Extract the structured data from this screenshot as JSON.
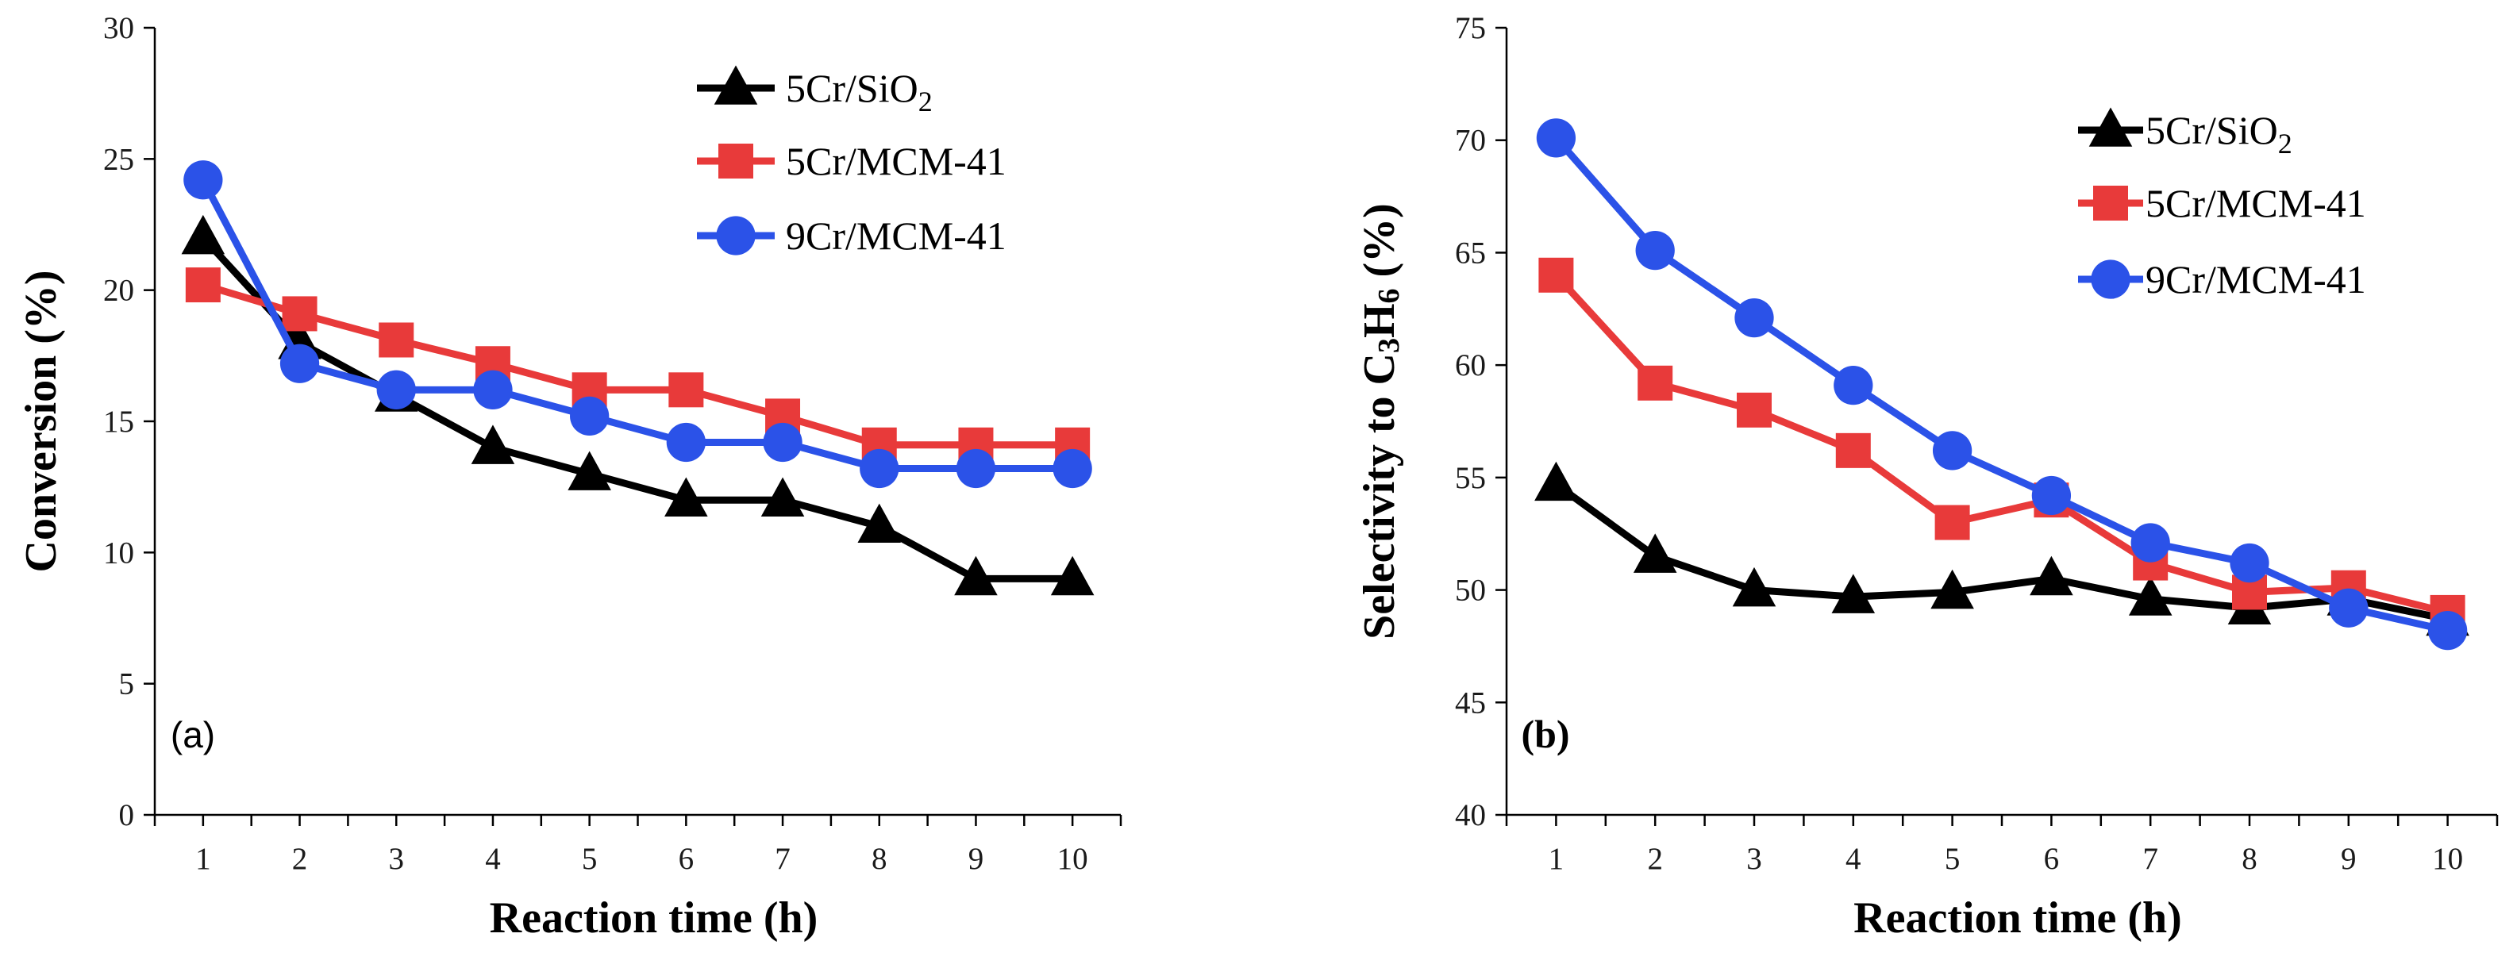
{
  "colors": {
    "5Cr/SiO2": "#000000",
    "5Cr/MCM-41": "#e83a3a",
    "9Cr/MCM-41": "#2b52e8"
  },
  "chart_data": [
    {
      "type": "line",
      "panel_label": "(a)",
      "xlabel": "Reaction time (h)",
      "ylabel": "Conversion (%)",
      "x": [
        1,
        2,
        3,
        4,
        5,
        6,
        7,
        8,
        9,
        10
      ],
      "ylim": [
        0,
        30
      ],
      "yticks": [
        "0",
        "5",
        "10",
        "15",
        "20",
        "25",
        "30"
      ],
      "legend": [
        {
          "base": "5Cr/SiO",
          "sub": "2",
          "marker": "triangle",
          "series": "5Cr/SiO2"
        },
        {
          "base": "5Cr/MCM-41",
          "sub": "",
          "marker": "square",
          "series": "5Cr/MCM-41"
        },
        {
          "base": "9Cr/MCM-41",
          "sub": "",
          "marker": "circle",
          "series": "9Cr/MCM-41"
        }
      ],
      "series": [
        {
          "name": "5Cr/SiO2",
          "marker": "triangle",
          "values": [
            22,
            18,
            16,
            14,
            13,
            12,
            12,
            11,
            9,
            9
          ]
        },
        {
          "name": "5Cr/MCM-41",
          "marker": "square",
          "values": [
            20.2,
            19.1,
            18.1,
            17.2,
            16.2,
            16.2,
            15.2,
            14.1,
            14.1,
            14.1
          ]
        },
        {
          "name": "9Cr/MCM-41",
          "marker": "circle",
          "values": [
            24.2,
            17.2,
            16.2,
            16.2,
            15.2,
            14.2,
            14.2,
            13.2,
            13.2,
            13.2
          ]
        }
      ]
    },
    {
      "type": "line",
      "panel_label": "(b)",
      "xlabel": "Reaction time (h)",
      "ylabel": "Selectivity to C3H6 (%)",
      "ylabel_parts": {
        "pre": "Selectivity to C",
        "sub1": "3",
        "mid": "H",
        "sub2": "6",
        "post": " (%)"
      },
      "x": [
        1,
        2,
        3,
        4,
        5,
        6,
        7,
        8,
        9,
        10
      ],
      "ylim": [
        40,
        75
      ],
      "yticks": [
        "40",
        "45",
        "50",
        "55",
        "60",
        "65",
        "70",
        "75"
      ],
      "legend": [
        {
          "base": "5Cr/SiO",
          "sub": "2",
          "marker": "triangle",
          "series": "5Cr/SiO2"
        },
        {
          "base": "5Cr/MCM-41",
          "sub": "",
          "marker": "square",
          "series": "5Cr/MCM-41"
        },
        {
          "base": "9Cr/MCM-41",
          "sub": "",
          "marker": "circle",
          "series": "9Cr/MCM-41"
        }
      ],
      "series": [
        {
          "name": "5Cr/SiO2",
          "marker": "triangle",
          "values": [
            54.7,
            51.5,
            50,
            49.7,
            49.9,
            50.5,
            49.6,
            49.2,
            49.6,
            48.7
          ]
        },
        {
          "name": "5Cr/MCM-41",
          "marker": "square",
          "values": [
            64,
            59.2,
            58,
            56.2,
            53,
            54,
            51.2,
            49.9,
            50.1,
            49
          ]
        },
        {
          "name": "9Cr/MCM-41",
          "marker": "circle",
          "values": [
            70.1,
            65.1,
            62.1,
            59.1,
            56.2,
            54.2,
            52.1,
            51.2,
            49.2,
            48.2
          ]
        }
      ]
    }
  ]
}
